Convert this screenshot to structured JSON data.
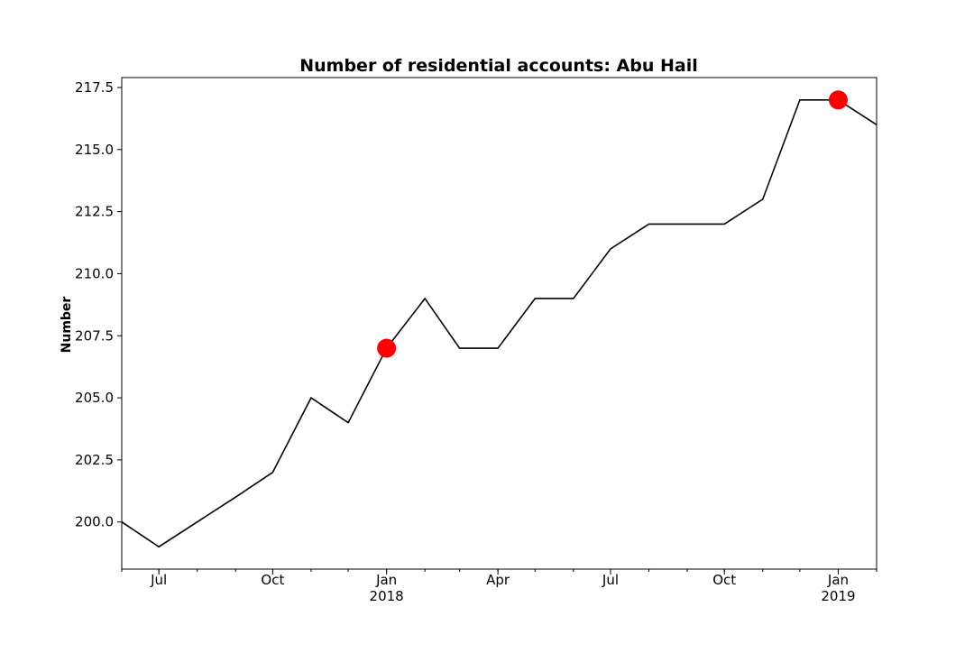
{
  "chart_data": {
    "type": "line",
    "title": "Number of residential accounts: Abu Hail",
    "xlabel": "",
    "ylabel": "Number",
    "ylim": [
      198.1,
      217.9
    ],
    "xlim": [
      "2017-06-01",
      "2019-02-01"
    ],
    "grid": false,
    "legend": "none",
    "y_ticks": [
      "200.0",
      "202.5",
      "205.0",
      "207.5",
      "210.0",
      "212.5",
      "215.0",
      "217.5"
    ],
    "x_major_ticks": [
      {
        "date": "2017-07-01",
        "label": "Jul",
        "sublabel": ""
      },
      {
        "date": "2017-10-01",
        "label": "Oct",
        "sublabel": ""
      },
      {
        "date": "2018-01-01",
        "label": "Jan",
        "sublabel": "2018"
      },
      {
        "date": "2018-04-01",
        "label": "Apr",
        "sublabel": ""
      },
      {
        "date": "2018-07-01",
        "label": "Jul",
        "sublabel": ""
      },
      {
        "date": "2018-10-01",
        "label": "Oct",
        "sublabel": ""
      },
      {
        "date": "2019-01-01",
        "label": "Jan",
        "sublabel": "2019"
      }
    ],
    "series": [
      {
        "color": "#000000",
        "x": [
          "2017-06-01",
          "2017-07-01",
          "2017-08-01",
          "2017-09-01",
          "2017-10-01",
          "2017-11-01",
          "2017-12-01",
          "2018-01-01",
          "2018-02-01",
          "2018-03-01",
          "2018-04-01",
          "2018-05-01",
          "2018-06-01",
          "2018-07-01",
          "2018-08-01",
          "2018-09-01",
          "2018-10-01",
          "2018-11-01",
          "2018-12-01",
          "2019-01-01",
          "2019-02-01"
        ],
        "values": [
          200,
          199,
          200,
          201,
          202,
          205,
          204,
          207,
          209,
          207,
          207,
          209,
          209,
          211,
          212,
          212,
          212,
          213,
          217,
          217,
          216
        ]
      }
    ],
    "highlights": [
      {
        "x": "2018-01-01",
        "y": 207,
        "color": "#ff0000"
      },
      {
        "x": "2019-01-01",
        "y": 217,
        "color": "#ff0000"
      }
    ]
  }
}
